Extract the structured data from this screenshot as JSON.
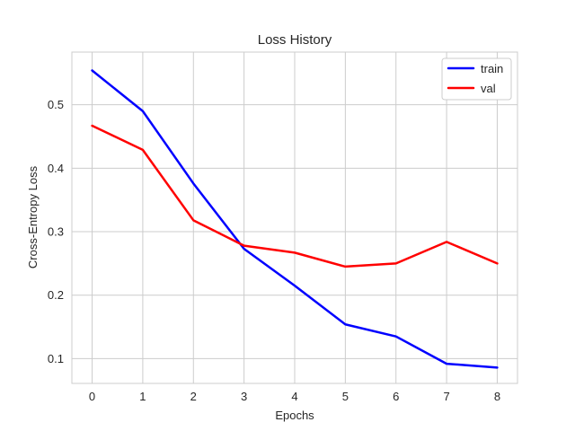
{
  "chart_data": {
    "type": "line",
    "title": "Loss History",
    "xlabel": "Epochs",
    "ylabel": "Cross-Entropy Loss",
    "x": [
      0,
      1,
      2,
      3,
      4,
      5,
      6,
      7,
      8
    ],
    "xlim": [
      -0.4,
      8.4
    ],
    "ylim": [
      0.061,
      0.583
    ],
    "xticks": [
      0,
      1,
      2,
      3,
      4,
      5,
      6,
      7,
      8
    ],
    "yticks": [
      0.1,
      0.2,
      0.3,
      0.4,
      0.5
    ],
    "grid": true,
    "legend_position": "top-right",
    "series": [
      {
        "name": "train",
        "color": "#0000ff",
        "values": [
          0.554,
          0.49,
          0.376,
          0.273,
          0.215,
          0.154,
          0.135,
          0.092,
          0.086
        ]
      },
      {
        "name": "val",
        "color": "#ff0000",
        "values": [
          0.467,
          0.429,
          0.318,
          0.278,
          0.267,
          0.245,
          0.25,
          0.284,
          0.25
        ]
      }
    ]
  }
}
